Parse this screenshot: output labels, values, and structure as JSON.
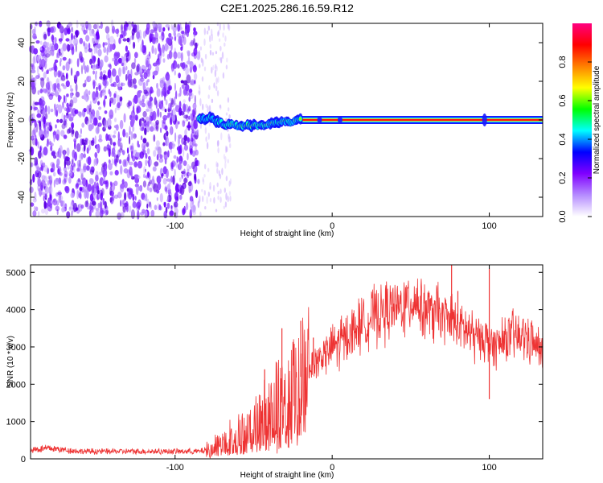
{
  "figure_title": "C2E1.2025.286.16.59.R12",
  "chart_data": [
    {
      "type": "heatmap",
      "name": "spectrogram",
      "title": "C2E1.2025.286.16.59.R12",
      "xlabel": "Height of straight line (km)",
      "ylabel": "Frequency (Hz)",
      "xlim": [
        -192,
        134
      ],
      "ylim": [
        -50,
        50
      ],
      "x_ticks": [
        -100,
        0,
        100
      ],
      "x_tick_labels": [
        "-100",
        "0",
        "100"
      ],
      "y_ticks": [
        -40,
        -20,
        0,
        20,
        40
      ],
      "y_tick_labels": [
        "-40",
        "-20",
        "0",
        "20",
        "40"
      ],
      "noise_region_x": [
        -192,
        -85
      ],
      "signal_start_x": -85,
      "carrier_frequency": 0,
      "carrier_track": [
        {
          "x": -85,
          "y": 0
        },
        {
          "x": -78,
          "y": 1
        },
        {
          "x": -70,
          "y": -2
        },
        {
          "x": -60,
          "y": -3
        },
        {
          "x": -50,
          "y": -3
        },
        {
          "x": -40,
          "y": -2
        },
        {
          "x": -30,
          "y": -1
        },
        {
          "x": -20,
          "y": 0
        },
        {
          "x": 0,
          "y": 0
        },
        {
          "x": 134,
          "y": 0
        }
      ],
      "colorbar": {
        "label": "Normalized spectral amplitude",
        "range": [
          0,
          1
        ],
        "ticks": [
          0.0,
          0.2,
          0.4,
          0.6,
          0.8
        ],
        "tick_labels": [
          "0.0",
          "0.2",
          "0.4",
          "0.6",
          "0.8"
        ],
        "colors": [
          "#ffffff",
          "#b58cff",
          "#8000ff",
          "#0000ff",
          "#00ffff",
          "#00ff00",
          "#ffff00",
          "#ff8000",
          "#ff0000",
          "#ff0080"
        ]
      }
    },
    {
      "type": "line",
      "name": "snr",
      "xlabel": "Height of straight line (km)",
      "ylabel": "SNR (10 * v/v)",
      "xlim": [
        -192,
        134
      ],
      "ylim": [
        0,
        5200
      ],
      "x_ticks": [
        -100,
        0,
        100
      ],
      "x_tick_labels": [
        "-100",
        "0",
        "100"
      ],
      "y_ticks": [
        0,
        1000,
        2000,
        3000,
        4000,
        5000
      ],
      "y_tick_labels": [
        "0",
        "1000",
        "2000",
        "3000",
        "4000",
        "5000"
      ],
      "color": "#ee3333",
      "envelope": [
        {
          "x": -192,
          "y": 250
        },
        {
          "x": -180,
          "y": 280
        },
        {
          "x": -160,
          "y": 200
        },
        {
          "x": -120,
          "y": 200
        },
        {
          "x": -85,
          "y": 200
        },
        {
          "x": -78,
          "y": 250
        },
        {
          "x": -70,
          "y": 500
        },
        {
          "x": -60,
          "y": 700
        },
        {
          "x": -50,
          "y": 900
        },
        {
          "x": -40,
          "y": 1300
        },
        {
          "x": -30,
          "y": 1800
        },
        {
          "x": -20,
          "y": 2200
        },
        {
          "x": -10,
          "y": 2600
        },
        {
          "x": 0,
          "y": 3000
        },
        {
          "x": 10,
          "y": 3300
        },
        {
          "x": 20,
          "y": 3700
        },
        {
          "x": 30,
          "y": 3900
        },
        {
          "x": 40,
          "y": 4000
        },
        {
          "x": 50,
          "y": 4250
        },
        {
          "x": 55,
          "y": 4200
        },
        {
          "x": 60,
          "y": 4000
        },
        {
          "x": 70,
          "y": 3800
        },
        {
          "x": 80,
          "y": 3600
        },
        {
          "x": 90,
          "y": 3300
        },
        {
          "x": 98,
          "y": 3200
        },
        {
          "x": 105,
          "y": 3000
        },
        {
          "x": 115,
          "y": 3300
        },
        {
          "x": 125,
          "y": 3250
        },
        {
          "x": 134,
          "y": 2800
        }
      ],
      "spikes": [
        {
          "x": -43,
          "y": 2400
        },
        {
          "x": -32,
          "y": 3500
        },
        {
          "x": -20,
          "y": 3700
        },
        {
          "x": -12,
          "y": 3250
        },
        {
          "x": 76,
          "y": 5200
        },
        {
          "x": 80,
          "y": 4500
        },
        {
          "x": 100,
          "y": 5100
        },
        {
          "x": 100,
          "y": 1600
        }
      ]
    }
  ]
}
